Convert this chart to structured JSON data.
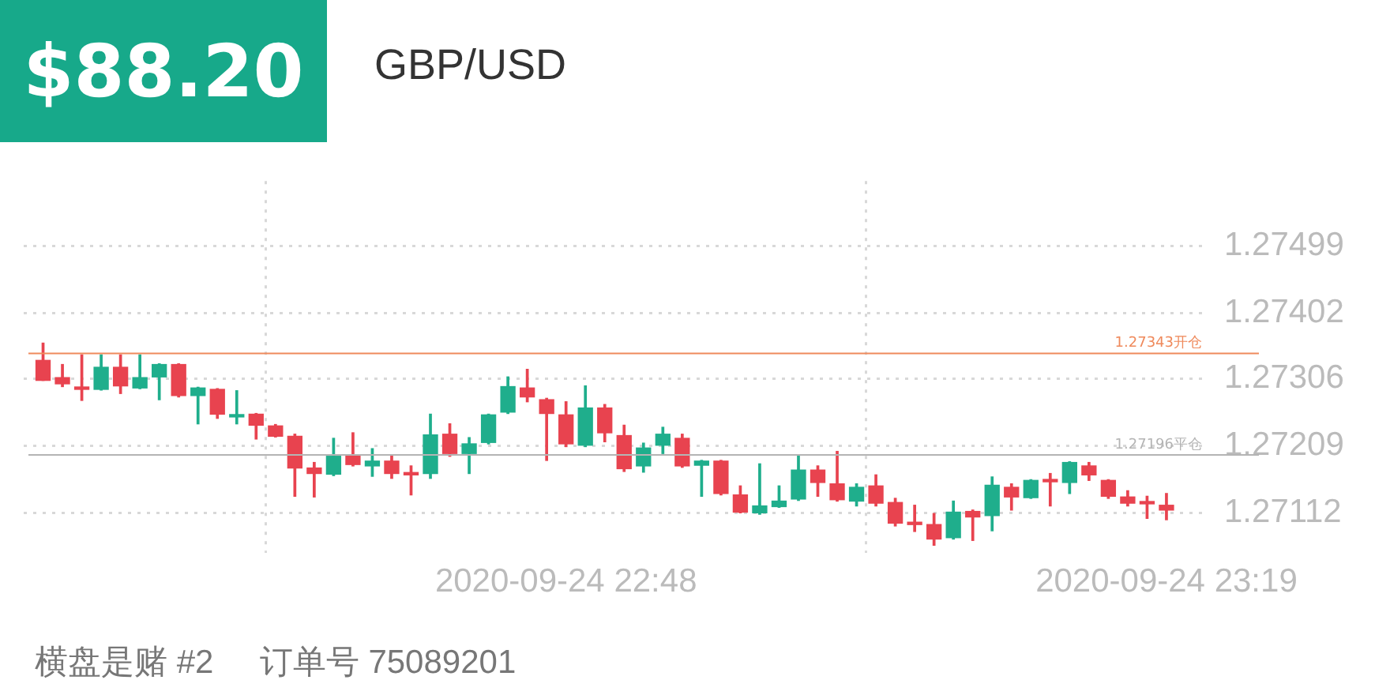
{
  "chart_data": {
    "type": "candlestick",
    "title": "GBP/USD",
    "subtitle": "$88.20",
    "annotations": [
      "横盘是赌 #2",
      "订单号 75089201"
    ],
    "x": [
      "2020-09-24T22:21",
      "2020-09-24T22:22",
      "2020-09-24T22:23",
      "2020-09-24T22:24",
      "2020-09-24T22:25",
      "2020-09-24T22:26",
      "2020-09-24T22:27",
      "2020-09-24T22:28",
      "2020-09-24T22:29",
      "2020-09-24T22:30",
      "2020-09-24T22:31",
      "2020-09-24T22:32",
      "2020-09-24T22:33",
      "2020-09-24T22:34",
      "2020-09-24T22:35",
      "2020-09-24T22:36",
      "2020-09-24T22:37",
      "2020-09-24T22:38",
      "2020-09-24T22:39",
      "2020-09-24T22:40",
      "2020-09-24T22:41",
      "2020-09-24T22:42",
      "2020-09-24T22:43",
      "2020-09-24T22:44",
      "2020-09-24T22:45",
      "2020-09-24T22:46",
      "2020-09-24T22:47",
      "2020-09-24T22:48",
      "2020-09-24T22:49",
      "2020-09-24T22:50",
      "2020-09-24T22:51",
      "2020-09-24T22:52",
      "2020-09-24T22:53",
      "2020-09-24T22:54",
      "2020-09-24T22:55",
      "2020-09-24T22:56",
      "2020-09-24T22:57",
      "2020-09-24T22:58",
      "2020-09-24T22:59",
      "2020-09-24T23:00",
      "2020-09-24T23:01",
      "2020-09-24T23:02",
      "2020-09-24T23:03",
      "2020-09-24T23:04",
      "2020-09-24T23:05",
      "2020-09-24T23:06",
      "2020-09-24T23:07",
      "2020-09-24T23:08",
      "2020-09-24T23:09",
      "2020-09-24T23:10",
      "2020-09-24T23:11",
      "2020-09-24T23:12",
      "2020-09-24T23:13",
      "2020-09-24T23:14",
      "2020-09-24T23:15",
      "2020-09-24T23:16",
      "2020-09-24T23:17",
      "2020-09-24T23:18",
      "2020-09-24T23:19"
    ],
    "ohlc": [
      [
        1.27333,
        1.27358,
        1.27304,
        1.27304
      ],
      [
        1.27308,
        1.27327,
        1.27295,
        1.27299
      ],
      [
        1.27291,
        1.27341,
        1.27275,
        1.27292
      ],
      [
        1.27291,
        1.27341,
        1.2729,
        1.27323
      ],
      [
        1.27323,
        1.27341,
        1.27285,
        1.27296
      ],
      [
        1.27293,
        1.27341,
        1.27292,
        1.27308
      ],
      [
        1.27309,
        1.27328,
        1.27276,
        1.27327
      ],
      [
        1.27327,
        1.27328,
        1.2728,
        1.27282
      ],
      [
        1.27282,
        1.27294,
        1.27241,
        1.27293
      ],
      [
        1.27291,
        1.27292,
        1.27249,
        1.27255
      ],
      [
        1.27251,
        1.27289,
        1.27241,
        1.27254
      ],
      [
        1.27255,
        1.27256,
        1.27219,
        1.27239
      ],
      [
        1.27238,
        1.2724,
        1.27222,
        1.27223
      ],
      [
        1.27223,
        1.27226,
        1.27136,
        1.27177
      ],
      [
        1.27177,
        1.27185,
        1.27135,
        1.27169
      ],
      [
        1.27168,
        1.2722,
        1.27166,
        1.27194
      ],
      [
        1.27195,
        1.27228,
        1.2718,
        1.27182
      ],
      [
        1.2718,
        1.27205,
        1.27165,
        1.27187
      ],
      [
        1.27187,
        1.27195,
        1.27162,
        1.27169
      ],
      [
        1.27168,
        1.2718,
        1.27138,
        1.27167
      ],
      [
        1.27169,
        1.27255,
        1.27162,
        1.27225
      ],
      [
        1.27226,
        1.27241,
        1.27194,
        1.27198
      ],
      [
        1.27198,
        1.27221,
        1.27169,
        1.27212
      ],
      [
        1.27214,
        1.27255,
        1.27212,
        1.27254
      ],
      [
        1.27258,
        1.27309,
        1.27256,
        1.27295
      ],
      [
        1.27293,
        1.2732,
        1.27273,
        1.2728
      ],
      [
        1.27276,
        1.27278,
        1.27188,
        1.27256
      ],
      [
        1.27254,
        1.27273,
        1.27208,
        1.27212
      ],
      [
        1.2721,
        1.27296,
        1.27208,
        1.27264
      ],
      [
        1.27264,
        1.27269,
        1.27215,
        1.27228
      ],
      [
        1.27224,
        1.27239,
        1.27172,
        1.27176
      ],
      [
        1.2718,
        1.27213,
        1.27171,
        1.27206
      ],
      [
        1.2721,
        1.27236,
        1.27198,
        1.27226
      ],
      [
        1.2722,
        1.27226,
        1.27178,
        1.2718
      ],
      [
        1.27181,
        1.27188,
        1.27136,
        1.27187
      ],
      [
        1.27187,
        1.27188,
        1.27138,
        1.2714
      ],
      [
        1.27138,
        1.27151,
        1.27112,
        1.27113
      ],
      [
        1.27112,
        1.27183,
        1.2711,
        1.27122
      ],
      [
        1.27121,
        1.27151,
        1.2712,
        1.27129
      ],
      [
        1.27132,
        1.27195,
        1.2713,
        1.27174
      ],
      [
        1.27174,
        1.2718,
        1.27136,
        1.27156
      ],
      [
        1.27154,
        1.27201,
        1.27129,
        1.27131
      ],
      [
        1.27129,
        1.27154,
        1.27122,
        1.27149
      ],
      [
        1.27151,
        1.27167,
        1.27122,
        1.27126
      ],
      [
        1.27127,
        1.27133,
        1.27093,
        1.27097
      ],
      [
        1.27097,
        1.27123,
        1.27085,
        1.27095
      ],
      [
        1.27095,
        1.27111,
        1.27065,
        1.27074
      ],
      [
        1.27076,
        1.27129,
        1.27074,
        1.27113
      ],
      [
        1.27114,
        1.27116,
        1.27072,
        1.27106
      ],
      [
        1.27108,
        1.27164,
        1.27086,
        1.27152
      ],
      [
        1.27149,
        1.27154,
        1.27116,
        1.27135
      ],
      [
        1.27134,
        1.2716,
        1.27133,
        1.27159
      ],
      [
        1.27159,
        1.27169,
        1.27122,
        1.27157
      ],
      [
        1.27156,
        1.27186,
        1.2714,
        1.27185
      ],
      [
        1.2718,
        1.27185,
        1.27159,
        1.27167
      ],
      [
        1.27159,
        1.2716,
        1.27133,
        1.27136
      ],
      [
        1.27135,
        1.27144,
        1.27122,
        1.27126
      ],
      [
        1.27126,
        1.27136,
        1.27104,
        1.27125
      ],
      [
        1.27123,
        1.2714,
        1.27102,
        1.27116
      ]
    ],
    "colors": [
      "#e8434f",
      "#e8434f",
      "#e8434f",
      "#1fae8c",
      "#e8434f",
      "#1fae8c",
      "#1fae8c",
      "#e8434f",
      "#1fae8c",
      "#e8434f",
      "#1fae8c",
      "#e8434f",
      "#e8434f",
      "#e8434f",
      "#e8434f",
      "#1fae8c",
      "#e8434f",
      "#1fae8c",
      "#e8434f",
      "#e8434f",
      "#1fae8c",
      "#e8434f",
      "#1fae8c",
      "#1fae8c",
      "#1fae8c",
      "#e8434f",
      "#e8434f",
      "#e8434f",
      "#1fae8c",
      "#e8434f",
      "#e8434f",
      "#1fae8c",
      "#1fae8c",
      "#e8434f",
      "#1fae8c",
      "#e8434f",
      "#e8434f",
      "#1fae8c",
      "#1fae8c",
      "#1fae8c",
      "#e8434f",
      "#e8434f",
      "#1fae8c",
      "#e8434f",
      "#e8434f",
      "#e8434f",
      "#e8434f",
      "#1fae8c",
      "#e8434f",
      "#1fae8c",
      "#e8434f",
      "#1fae8c",
      "#e8434f",
      "#1fae8c",
      "#e8434f",
      "#e8434f",
      "#e8434f",
      "#e8434f",
      "#e8434f"
    ],
    "xlim": [
      "2020-09-24T22:20",
      "2020-09-24T23:21"
    ],
    "xticks": [
      {
        "value": "2020-09-24T22:48",
        "label": "2020-09-24 22:48"
      },
      {
        "value": "2020-09-24T23:19",
        "label": "2020-09-24 23:19"
      }
    ],
    "ylim": [
      1.27054,
      1.27593
    ],
    "yticks": [
      1.27112,
      1.27209,
      1.27306,
      1.27402,
      1.27499
    ],
    "grid": true,
    "ref_lines": [
      {
        "axis": "y",
        "value": 1.27343,
        "label": "1.27343开仓",
        "color": "#ef8a5c"
      },
      {
        "axis": "y",
        "value": 1.27196,
        "label": "1.27196平仓",
        "color": "#b4b4b4"
      }
    ]
  }
}
